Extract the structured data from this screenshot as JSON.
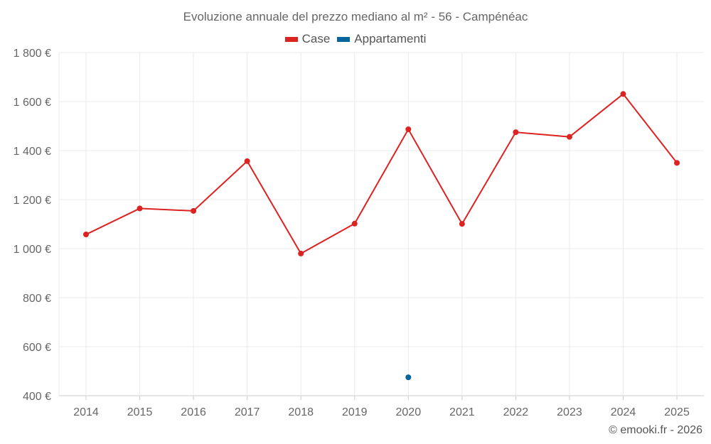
{
  "chart_data": {
    "type": "line",
    "title": "Evoluzione annuale del prezzo mediano al m² - 56 - Campénéac",
    "xlabel": "",
    "ylabel": "",
    "categories": [
      "2014",
      "2015",
      "2016",
      "2017",
      "2018",
      "2019",
      "2020",
      "2021",
      "2022",
      "2023",
      "2024",
      "2025"
    ],
    "ylim": [
      400,
      1800
    ],
    "yticks": [
      400,
      600,
      800,
      1000,
      1200,
      1400,
      1600,
      1800
    ],
    "ytick_labels": [
      "400 €",
      "600 €",
      "800 €",
      "1 000 €",
      "1 200 €",
      "1 400 €",
      "1 600 €",
      "1 800 €"
    ],
    "grid": true,
    "legend_position": "top-center",
    "series": [
      {
        "name": "Case",
        "color": "#dd2222",
        "values": [
          1058,
          1164,
          1154,
          1357,
          980,
          1102,
          1487,
          1101,
          1475,
          1456,
          1631,
          1350
        ]
      },
      {
        "name": "Appartamenti",
        "color": "#06649e",
        "values": [
          null,
          null,
          null,
          null,
          null,
          null,
          475,
          null,
          null,
          null,
          null,
          null
        ]
      }
    ]
  },
  "credit": "© emooki.fr - 2026"
}
